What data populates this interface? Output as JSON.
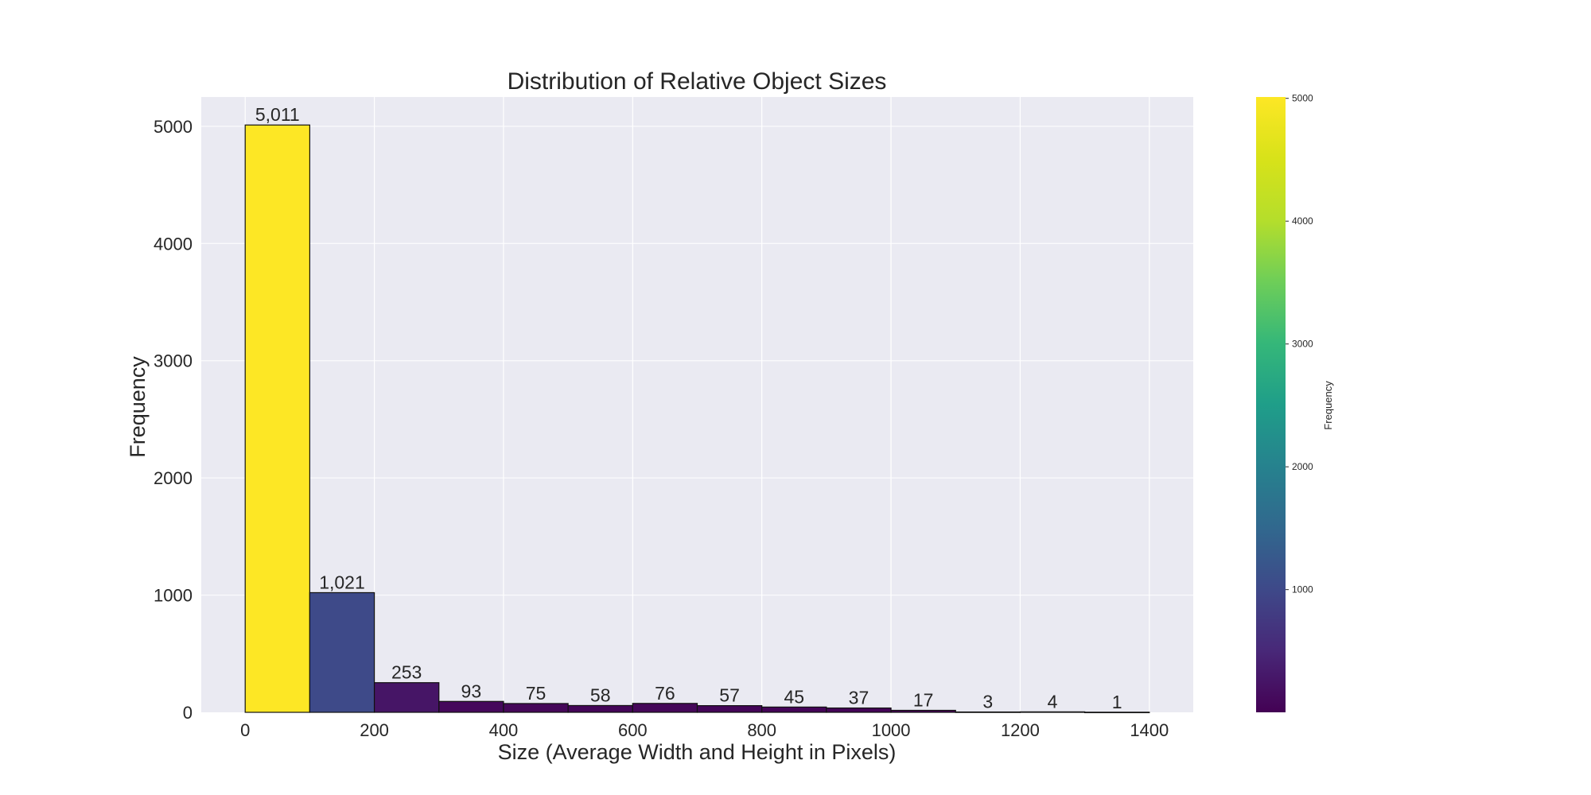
{
  "chart_data": {
    "type": "bar",
    "title": "Distribution of Relative Object Sizes",
    "xlabel": "Size (Average Width and Height in Pixels)",
    "ylabel": "Frequency",
    "bin_width": 100,
    "bins": [
      {
        "start": 0,
        "end": 100,
        "value": 5011,
        "label": "5,011"
      },
      {
        "start": 100,
        "end": 200,
        "value": 1021,
        "label": "1,021"
      },
      {
        "start": 200,
        "end": 300,
        "value": 253,
        "label": "253"
      },
      {
        "start": 300,
        "end": 400,
        "value": 93,
        "label": "93"
      },
      {
        "start": 400,
        "end": 500,
        "value": 75,
        "label": "75"
      },
      {
        "start": 500,
        "end": 600,
        "value": 58,
        "label": "58"
      },
      {
        "start": 600,
        "end": 700,
        "value": 76,
        "label": "76"
      },
      {
        "start": 700,
        "end": 800,
        "value": 57,
        "label": "57"
      },
      {
        "start": 800,
        "end": 900,
        "value": 45,
        "label": "45"
      },
      {
        "start": 900,
        "end": 1000,
        "value": 37,
        "label": "37"
      },
      {
        "start": 1000,
        "end": 1100,
        "value": 17,
        "label": "17"
      },
      {
        "start": 1100,
        "end": 1200,
        "value": 3,
        "label": "3"
      },
      {
        "start": 1200,
        "end": 1300,
        "value": 4,
        "label": "4"
      },
      {
        "start": 1300,
        "end": 1400,
        "value": 1,
        "label": "1"
      }
    ],
    "xlim": [
      -68,
      1468
    ],
    "ylim": [
      0,
      5250
    ],
    "xticks": [
      0,
      200,
      400,
      600,
      800,
      1000,
      1200,
      1400
    ],
    "yticks": [
      0,
      1000,
      2000,
      3000,
      4000,
      5000
    ],
    "grid": true,
    "background": "#eaeaf2",
    "colormap": "viridis",
    "colorbar": {
      "label": "Frequency",
      "range": [
        1,
        5011
      ],
      "ticks": [
        1000,
        2000,
        3000,
        4000,
        5000
      ]
    }
  }
}
